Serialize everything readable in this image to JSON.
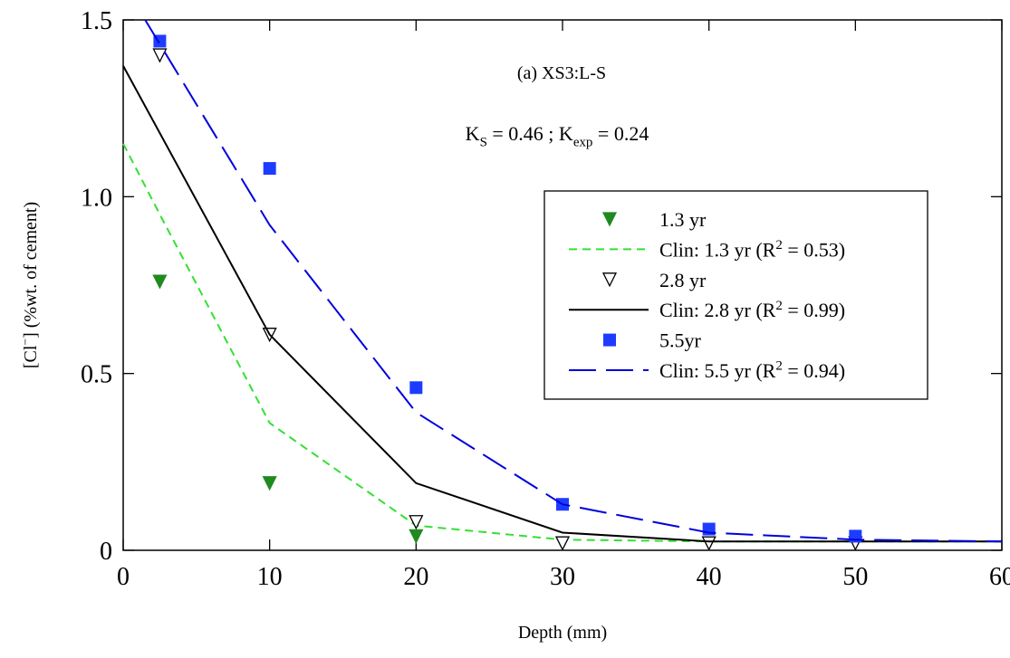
{
  "chart_data": {
    "type": "line",
    "title": "(a) XS3:L-S",
    "annotation": [
      {
        "text": "K"
      },
      {
        "text": "S",
        "sub": true
      },
      {
        "text": " = 0.46 ; K"
      },
      {
        "text": "exp",
        "sub": true
      },
      {
        "text": " = 0.24"
      }
    ],
    "x_label": "Depth  (mm)",
    "y_label": [
      {
        "text": "[Cl"
      },
      {
        "text": "−",
        "sup": true
      },
      {
        "text": "]  (%wt. of cement)"
      }
    ],
    "xlim": [
      0,
      60
    ],
    "xticks": [
      0,
      10,
      20,
      30,
      40,
      50,
      60
    ],
    "ylim": [
      0,
      1.5
    ],
    "yticks": [
      0,
      {
        "value": 0.5,
        "label": "0.5"
      },
      {
        "value": 1,
        "label": "1.0"
      },
      1.5
    ],
    "legend": "upper right",
    "series": [
      {
        "name": [
          {
            "text": "1.3 yr"
          }
        ],
        "color": "#1f8a1f",
        "marker": "tri-down-filled",
        "x": [
          2.5,
          10,
          20,
          30,
          40
        ],
        "values": [
          0.76,
          0.19,
          0.04,
          0.02,
          0.02
        ]
      },
      {
        "name": [
          {
            "text": "Clin: 1.3 yr (R"
          },
          {
            "text": "2",
            "sup": true
          },
          {
            "text": " = 0.53)"
          }
        ],
        "color": "#33e033",
        "dash": "9,6",
        "x": [
          0,
          2.5,
          10,
          20,
          30,
          40,
          50,
          60
        ],
        "values": [
          1.15,
          0.95,
          0.36,
          0.07,
          0.03,
          0.025,
          0.025,
          0.025
        ]
      },
      {
        "name": [
          {
            "text": "2.8 yr"
          }
        ],
        "color": "#000000",
        "marker": "tri-down-open",
        "x": [
          2.5,
          10,
          20,
          30,
          40,
          50
        ],
        "values": [
          1.4,
          0.61,
          0.08,
          0.02,
          0.02,
          0.02
        ]
      },
      {
        "name": [
          {
            "text": "Clin: 2.8 yr (R"
          },
          {
            "text": "2",
            "sup": true
          },
          {
            "text": " = 0.99)"
          }
        ],
        "color": "#000000",
        "dash": "none",
        "x": [
          0,
          10,
          20,
          30,
          40,
          50,
          60
        ],
        "values": [
          1.37,
          0.61,
          0.19,
          0.05,
          0.025,
          0.025,
          0.025
        ]
      },
      {
        "name": [
          {
            "text": "5.5yr"
          }
        ],
        "color": "#1e3cff",
        "marker": "square",
        "x": [
          2.5,
          10,
          20,
          30,
          40,
          50
        ],
        "values": [
          1.44,
          1.08,
          0.46,
          0.13,
          0.06,
          0.04
        ]
      },
      {
        "name": [
          {
            "text": "Clin: 5.5 yr (R"
          },
          {
            "text": "2",
            "sup": true
          },
          {
            "text": " = 0.94)"
          }
        ],
        "color": "#0000dd",
        "dash": "30,11",
        "x": [
          1.5,
          10,
          20,
          30,
          40,
          50,
          60
        ],
        "values": [
          1.5,
          0.92,
          0.39,
          0.13,
          0.05,
          0.03,
          0.025
        ]
      }
    ]
  }
}
